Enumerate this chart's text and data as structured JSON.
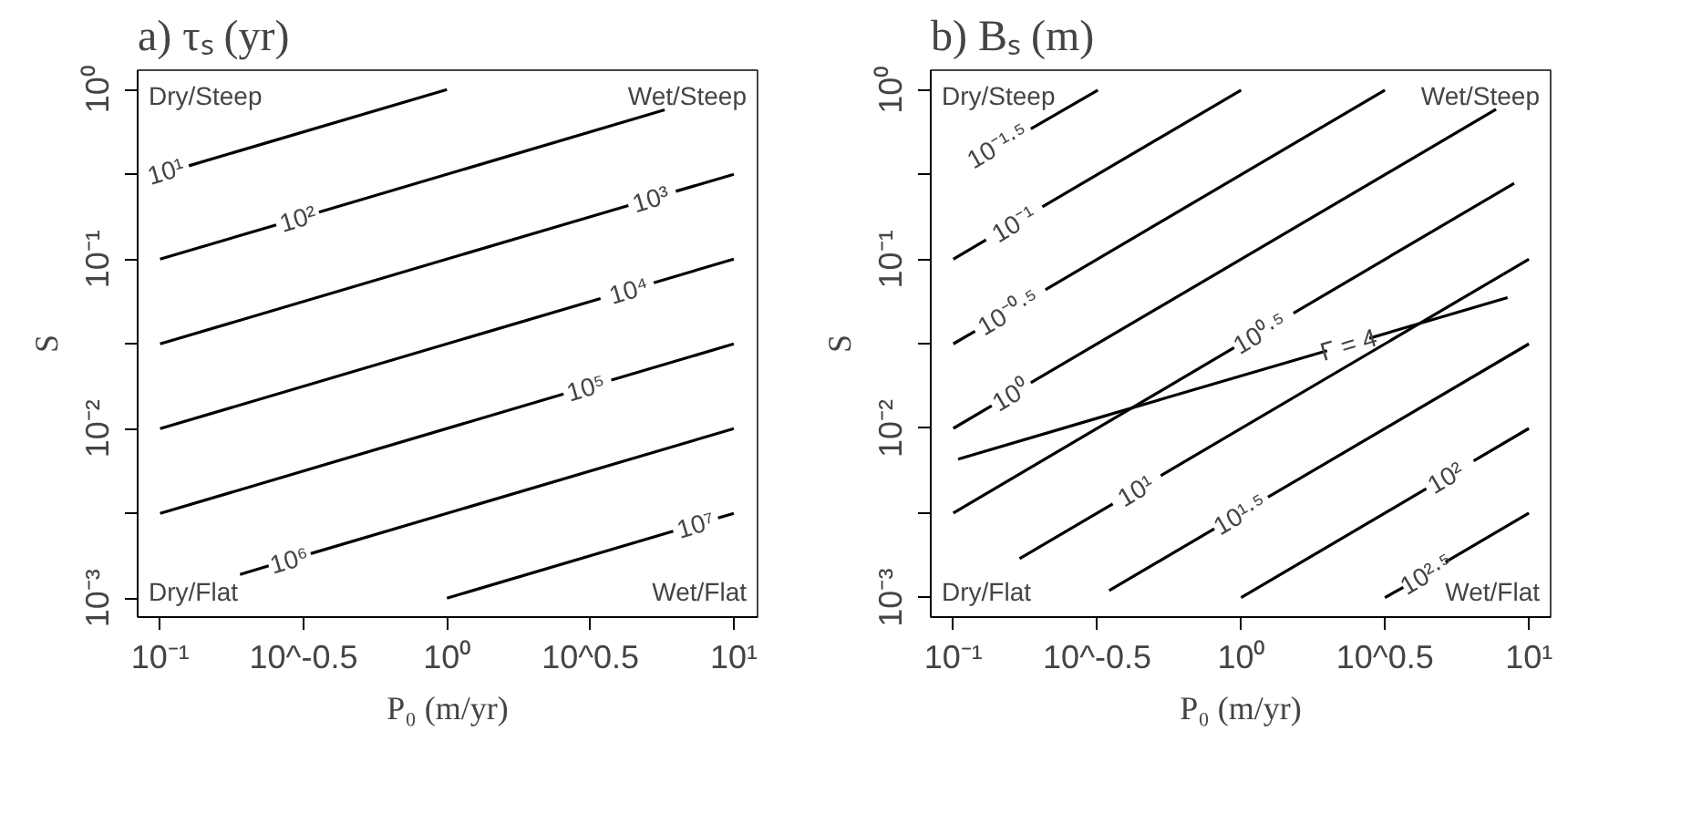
{
  "chart_data": [
    {
      "type": "line",
      "title": "a) τₛ (yr)",
      "xlabel": "P₀ (m/yr)",
      "ylabel": "S",
      "log": "xy",
      "color": "#000000",
      "xlim": [
        0.0835,
        12.1
      ],
      "ylim": [
        0.000773,
        1.3
      ],
      "xticks": [
        {
          "value": 0.1,
          "label": "10⁻¹"
        },
        {
          "value": 0.31623,
          "label": "10^-0.5"
        },
        {
          "value": 1,
          "label": "10⁰"
        },
        {
          "value": 3.1623,
          "label": "10^0.5"
        },
        {
          "value": 10,
          "label": "10¹"
        }
      ],
      "yticks": [
        {
          "value": 0.001,
          "label": "10⁻³"
        },
        {
          "value": 0.00316,
          "label": null
        },
        {
          "value": 0.01,
          "label": "10⁻²"
        },
        {
          "value": 0.0316,
          "label": null
        },
        {
          "value": 0.1,
          "label": "10⁻¹"
        },
        {
          "value": 0.316,
          "label": null
        },
        {
          "value": 1,
          "label": "10⁰"
        }
      ],
      "annotations": [
        "Dry/Steep",
        "Wet/Steep",
        "Dry/Flat",
        "Wet/Flat"
      ],
      "series": [
        {
          "name": "10¹",
          "x": [
            0.126,
            1
          ],
          "values": [
            0.355,
            1
          ]
        },
        {
          "name": "10²",
          "x": [
            0.1,
            0.254,
            0.302,
            0.358,
            5.74
          ],
          "values": [
            0.1,
            0.159,
            null,
            0.189,
            0.758
          ]
        },
        {
          "name": "10³",
          "x": [
            0.1,
            4.29,
            5.13,
            6.28,
            10
          ],
          "values": [
            0.0316,
            0.207,
            null,
            0.251,
            0.316
          ]
        },
        {
          "name": "10⁴",
          "x": [
            0.1,
            3.43,
            4.3,
            5.26,
            10
          ],
          "values": [
            0.01,
            0.0585,
            null,
            0.0725,
            0.1
          ]
        },
        {
          "name": "10⁵",
          "x": [
            0.1,
            2.55,
            3.05,
            3.74,
            10
          ],
          "values": [
            0.00316,
            0.016,
            null,
            0.0193,
            0.0316
          ]
        },
        {
          "name": "10⁶",
          "x": [
            0.19,
            0.239,
            0.282,
            0.335,
            10
          ],
          "values": [
            0.00138,
            0.00155,
            null,
            0.00183,
            0.01
          ]
        },
        {
          "name": "10⁷",
          "x": [
            1,
            6.15,
            7.36,
            8.81,
            10
          ],
          "values": [
            0.001,
            0.00248,
            null,
            0.00297,
            0.00316
          ]
        }
      ]
    },
    {
      "type": "line",
      "title": "b) Bₛ (m)",
      "xlabel": "P₀ (m/yr)",
      "ylabel": "S",
      "log": "xy",
      "color": "#000000",
      "xlim": [
        0.0835,
        11.9
      ],
      "ylim": [
        0.000767,
        1.31
      ],
      "xticks": [
        {
          "value": 0.1,
          "label": "10⁻¹"
        },
        {
          "value": 0.31623,
          "label": "10^-0.5"
        },
        {
          "value": 1,
          "label": "10⁰"
        },
        {
          "value": 3.1623,
          "label": "10^0.5"
        },
        {
          "value": 10,
          "label": "10¹"
        }
      ],
      "yticks": [
        {
          "value": 0.001,
          "label": "10⁻³"
        },
        {
          "value": 0.00316,
          "label": null
        },
        {
          "value": 0.01,
          "label": "10⁻²"
        },
        {
          "value": 0.0316,
          "label": null
        },
        {
          "value": 0.1,
          "label": "10⁻¹"
        },
        {
          "value": 0.316,
          "label": null
        },
        {
          "value": 1,
          "label": "10⁰"
        }
      ],
      "annotations": [
        "Dry/Steep",
        "Wet/Steep",
        "Dry/Flat",
        "Wet/Flat"
      ],
      "series": [
        {
          "name": "10⁻¹·⁵",
          "x": [
            0.186,
            0.318
          ],
          "values": [
            0.589,
            1
          ]
        },
        {
          "name": "10⁻¹",
          "x": [
            0.1,
            0.13,
            0.162,
            0.204,
            1
          ],
          "values": [
            0.1,
            0.13,
            null,
            0.204,
            1
          ]
        },
        {
          "name": "10⁻⁰·⁵",
          "x": [
            0.1,
            0.119,
            0.155,
            0.209,
            3.16
          ],
          "values": [
            0.0316,
            0.0375,
            null,
            0.066,
            1
          ]
        },
        {
          "name": "10⁰",
          "x": [
            0.1,
            0.136,
            0.158,
            0.186,
            7.69
          ],
          "values": [
            0.01,
            0.0136,
            null,
            0.0186,
            0.769
          ]
        },
        {
          "name": "10⁰·⁵",
          "x": [
            0.1,
            0.946,
            1.16,
            1.52,
            8.89
          ],
          "values": [
            0.00316,
            0.03,
            null,
            0.048,
            0.281
          ]
        },
        {
          "name": "10¹",
          "x": [
            0.17,
            0.358,
            0.43,
            0.526,
            10
          ],
          "values": [
            0.0017,
            0.00358,
            null,
            0.00526,
            0.1
          ]
        },
        {
          "name": "10¹·⁵",
          "x": [
            0.348,
            0.807,
            0.989,
            1.24,
            10
          ],
          "values": [
            0.0011,
            0.00255,
            null,
            0.00392,
            0.0316
          ]
        },
        {
          "name": "10²",
          "x": [
            1,
            4.4,
            5.13,
            6.43,
            10
          ],
          "values": [
            0.001,
            0.0044,
            null,
            0.00643,
            0.01
          ]
        },
        {
          "name": "10²·⁵",
          "x": [
            3.16,
            3.66,
            4.4,
            5.13,
            10
          ],
          "values": [
            0.001,
            0.00115,
            null,
            0.00162,
            0.00316
          ]
        },
        {
          "name": "Γ = 4",
          "x": [
            0.104,
            0.306,
            0.538,
            1.99,
            2.36,
            2.79,
            8.43
          ],
          "values": [
            0.00658,
            0.0113,
            0.015,
            0.0288,
            null,
            0.0341,
            0.0593
          ]
        }
      ]
    }
  ]
}
